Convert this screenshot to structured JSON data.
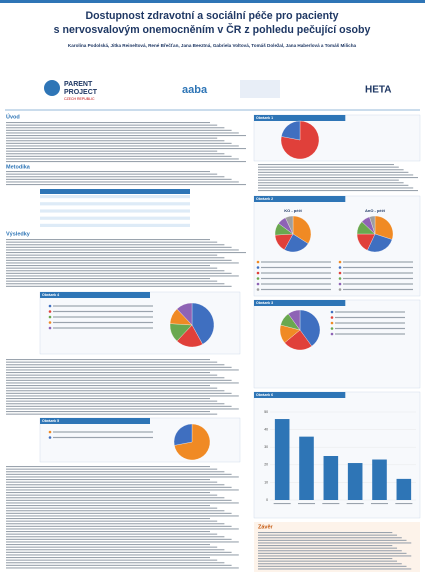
{
  "header": {
    "title": [
      "Dostupnost zdravotní a sociální péče pro pacienty",
      "s nervosvalovým onemocněním v ČR z pohledu pečující osoby"
    ],
    "authors": "Karolína Podolská, Jitka Reineltová, René Břečťan, Jana Beeztná, Gabriela Voltová, Tomáš Doležal, Jana Haberlová a Tomáš Milicha",
    "logos": [
      "PARENT",
      "PROJECT",
      "CZECH REPUBLIC",
      "aaba",
      "HETA"
    ]
  },
  "sections": {
    "intro": "Úvod",
    "methods": "Metodika",
    "results": "Výsledky",
    "conclusion": "Závěr"
  },
  "chart_data": [
    {
      "type": "pie",
      "title": "Obrázek 1",
      "values": [
        78,
        22
      ],
      "colors": [
        "#e0403a",
        "#3f6fc0"
      ]
    },
    {
      "type": "pie",
      "title": "Obrázek 2",
      "subtitle": "KO - péči",
      "values": [
        34,
        24,
        16,
        11,
        8,
        7
      ],
      "colors": [
        "#f08a24",
        "#3f6fc0",
        "#e0403a",
        "#6aa84f",
        "#8e63b5",
        "#9e9e9e"
      ]
    },
    {
      "type": "pie",
      "subtitle": "AnO - péči",
      "values": [
        30,
        27,
        18,
        12,
        8,
        5
      ],
      "colors": [
        "#f08a24",
        "#3f6fc0",
        "#e0403a",
        "#6aa84f",
        "#8e63b5",
        "#9e9e9e"
      ]
    },
    {
      "type": "pie",
      "title": "Obrázek 3",
      "values": [
        40,
        24,
        15,
        11,
        10
      ],
      "colors": [
        "#3f6fc0",
        "#e0403a",
        "#f08a24",
        "#6aa84f",
        "#8e63b5"
      ]
    },
    {
      "type": "pie",
      "title": "Obrázek 4",
      "values": [
        42,
        20,
        14,
        12,
        12
      ],
      "colors": [
        "#3f6fc0",
        "#e0403a",
        "#6aa84f",
        "#f08a24",
        "#8e63b5"
      ]
    },
    {
      "type": "pie",
      "title": "Obrázek 5",
      "values": [
        72,
        28
      ],
      "colors": [
        "#f08a24",
        "#3f6fc0"
      ]
    },
    {
      "type": "bar",
      "title": "Obrázek 6",
      "categories": [
        null,
        null,
        null,
        null,
        null,
        null
      ],
      "values": [
        46,
        36,
        25,
        21,
        23,
        12
      ],
      "color": "#2e75b6",
      "ylim": [
        0,
        50
      ],
      "yticks": [
        0,
        10,
        20,
        30,
        40,
        50
      ],
      "grid": true
    }
  ]
}
